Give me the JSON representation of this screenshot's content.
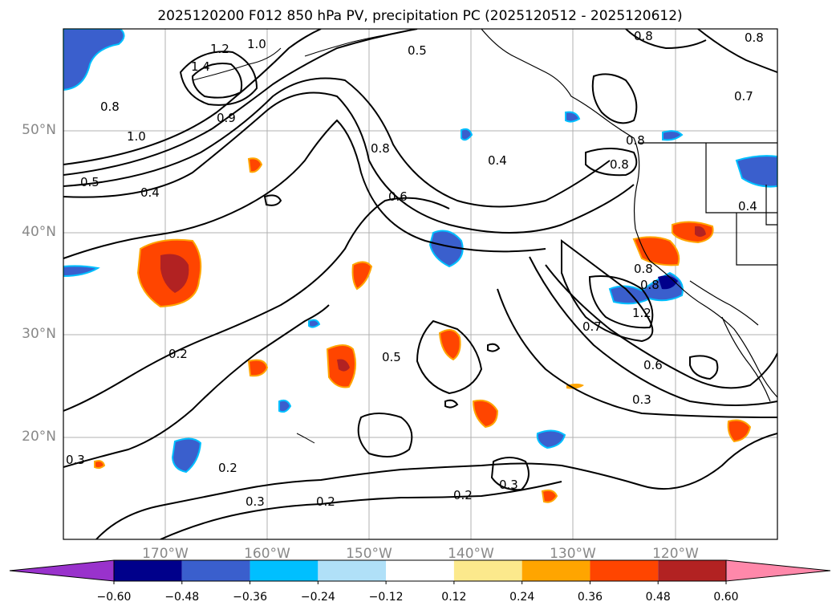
{
  "title": "2025120200 F012 850 hPa PV, precipitation PC (2025120512 - 2025120612)",
  "lat_labels": [
    "50°N",
    "40°N",
    "30°N",
    "20°N"
  ],
  "lon_labels": [
    "170°W",
    "160°W",
    "150°W",
    "140°W",
    "130°W",
    "120°W"
  ],
  "contour_labels": [
    "1.2",
    "1.0",
    "1.4",
    "0.8",
    "0.9",
    "1.0",
    "0.8",
    "0.5",
    "0.4",
    "0.5",
    "0.8",
    "0.4",
    "0.6",
    "0.8",
    "0.8",
    "0.8",
    "0.7",
    "0.8",
    "0.4",
    "0.8",
    "1.2",
    "0.7",
    "0.6",
    "0.2",
    "0.5",
    "0.3",
    "0.3",
    "0.2",
    "0.3",
    "0.2",
    "0.2",
    "0.3"
  ],
  "colorbar": {
    "ticks": [
      "−0.60",
      "−0.48",
      "−0.36",
      "−0.24",
      "−0.12",
      "0.12",
      "0.24",
      "0.36",
      "0.48",
      "0.60"
    ],
    "colors": [
      "#9932cc",
      "#00008b",
      "#3a5fcd",
      "#00bfff",
      "#b0e0f8",
      "#ffffff",
      "#fce98c",
      "#ffa500",
      "#ff4500",
      "#b22222",
      "#ff88aa"
    ]
  }
}
